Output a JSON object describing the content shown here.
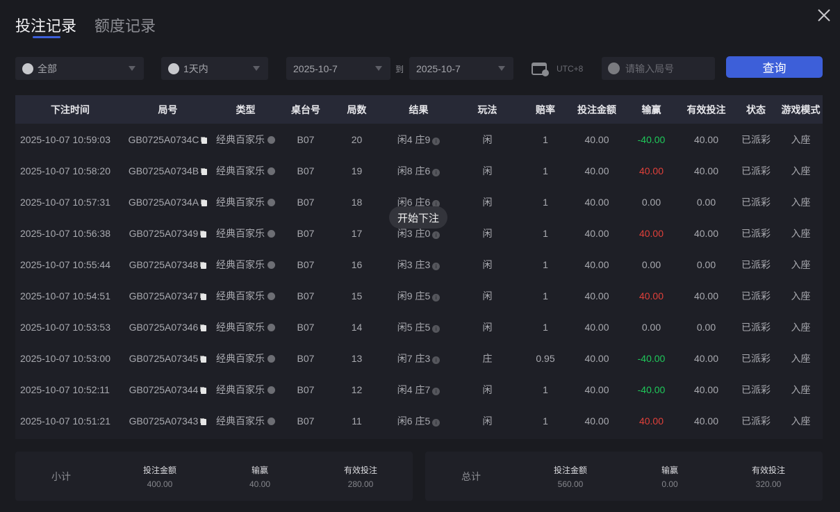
{
  "tabs": [
    {
      "label": "投注记录",
      "active": true
    },
    {
      "label": "额度记录",
      "active": false
    }
  ],
  "filters": {
    "game": "全部",
    "period": "1天内",
    "date_from": "2025-10-7",
    "to_label": "到",
    "date_to": "2025-10-7",
    "timezone": "UTC+8",
    "round_placeholder": "请输入局号",
    "query_label": "查询"
  },
  "table": {
    "headers": [
      "下注时间",
      "局号",
      "类型",
      "桌台号",
      "局数",
      "结果",
      "玩法",
      "赔率",
      "投注金额",
      "输赢",
      "有效投注",
      "状态",
      "游戏模式"
    ],
    "rows": [
      {
        "time": "2025-10-07 10:59:03",
        "round": "GB0725A0734C",
        "type": "经典百家乐",
        "table": "B07",
        "count": "20",
        "result": "闲4 庄9",
        "play": "闲",
        "odds": "1",
        "bet": "40.00",
        "win": "-40.00",
        "valid": "40.00",
        "status": "已派彩",
        "mode": "入座"
      },
      {
        "time": "2025-10-07 10:58:20",
        "round": "GB0725A0734B",
        "type": "经典百家乐",
        "table": "B07",
        "count": "19",
        "result": "闲8 庄6",
        "play": "闲",
        "odds": "1",
        "bet": "40.00",
        "win": "40.00",
        "valid": "40.00",
        "status": "已派彩",
        "mode": "入座"
      },
      {
        "time": "2025-10-07 10:57:31",
        "round": "GB0725A0734A",
        "type": "经典百家乐",
        "table": "B07",
        "count": "18",
        "result": "闲6 庄6",
        "play": "闲",
        "odds": "1",
        "bet": "40.00",
        "win": "0.00",
        "valid": "0.00",
        "status": "已派彩",
        "mode": "入座"
      },
      {
        "time": "2025-10-07 10:56:38",
        "round": "GB0725A07349",
        "type": "经典百家乐",
        "table": "B07",
        "count": "17",
        "result": "闲3 庄0",
        "play": "闲",
        "odds": "1",
        "bet": "40.00",
        "win": "40.00",
        "valid": "40.00",
        "status": "已派彩",
        "mode": "入座"
      },
      {
        "time": "2025-10-07 10:55:44",
        "round": "GB0725A07348",
        "type": "经典百家乐",
        "table": "B07",
        "count": "16",
        "result": "闲3 庄3",
        "play": "闲",
        "odds": "1",
        "bet": "40.00",
        "win": "0.00",
        "valid": "0.00",
        "status": "已派彩",
        "mode": "入座"
      },
      {
        "time": "2025-10-07 10:54:51",
        "round": "GB0725A07347",
        "type": "经典百家乐",
        "table": "B07",
        "count": "15",
        "result": "闲9 庄5",
        "play": "闲",
        "odds": "1",
        "bet": "40.00",
        "win": "40.00",
        "valid": "40.00",
        "status": "已派彩",
        "mode": "入座"
      },
      {
        "time": "2025-10-07 10:53:53",
        "round": "GB0725A07346",
        "type": "经典百家乐",
        "table": "B07",
        "count": "14",
        "result": "闲5 庄5",
        "play": "闲",
        "odds": "1",
        "bet": "40.00",
        "win": "0.00",
        "valid": "0.00",
        "status": "已派彩",
        "mode": "入座"
      },
      {
        "time": "2025-10-07 10:53:00",
        "round": "GB0725A07345",
        "type": "经典百家乐",
        "table": "B07",
        "count": "13",
        "result": "闲7 庄3",
        "play": "庄",
        "odds": "0.95",
        "bet": "40.00",
        "win": "-40.00",
        "valid": "40.00",
        "status": "已派彩",
        "mode": "入座"
      },
      {
        "time": "2025-10-07 10:52:11",
        "round": "GB0725A07344",
        "type": "经典百家乐",
        "table": "B07",
        "count": "12",
        "result": "闲4 庄7",
        "play": "闲",
        "odds": "1",
        "bet": "40.00",
        "win": "-40.00",
        "valid": "40.00",
        "status": "已派彩",
        "mode": "入座"
      },
      {
        "time": "2025-10-07 10:51:21",
        "round": "GB0725A07343",
        "type": "经典百家乐",
        "table": "B07",
        "count": "11",
        "result": "闲6 庄5",
        "play": "闲",
        "odds": "1",
        "bet": "40.00",
        "win": "40.00",
        "valid": "40.00",
        "status": "已派彩",
        "mode": "入座"
      }
    ]
  },
  "tooltip": "开始下注",
  "subtotal": {
    "label": "小计",
    "bet_label": "投注金额",
    "bet": "400.00",
    "win_label": "输赢",
    "win": "40.00",
    "valid_label": "有效投注",
    "valid": "280.00"
  },
  "total": {
    "label": "总计",
    "bet_label": "投注金额",
    "bet": "560.00",
    "win_label": "输赢",
    "win": "0.00",
    "valid_label": "有效投注",
    "valid": "320.00"
  },
  "colors": {
    "accent": "#3d5fd9",
    "win": "#e0403a",
    "loss": "#1fc85a"
  }
}
